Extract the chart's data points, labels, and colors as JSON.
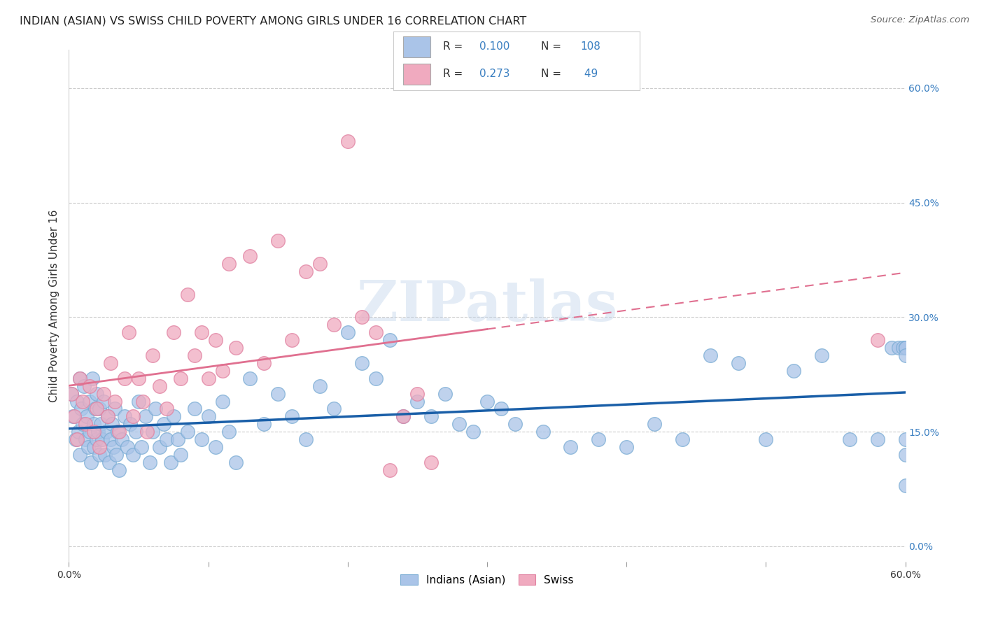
{
  "title": "INDIAN (ASIAN) VS SWISS CHILD POVERTY AMONG GIRLS UNDER 16 CORRELATION CHART",
  "source": "Source: ZipAtlas.com",
  "ylabel": "Child Poverty Among Girls Under 16",
  "xlim": [
    0.0,
    0.6
  ],
  "ylim": [
    -0.02,
    0.65
  ],
  "background_color": "#ffffff",
  "watermark": "ZIPatlas",
  "blue_color": "#aac4e8",
  "blue_edge": "#7aacd4",
  "pink_color": "#f0aabf",
  "pink_edge": "#e080a0",
  "blue_line_color": "#1a5fa8",
  "pink_line_color": "#e07090",
  "right_yticks": [
    0.0,
    0.15,
    0.3,
    0.45,
    0.6
  ],
  "right_ytick_labels": [
    "0.0%",
    "15.0%",
    "30.0%",
    "45.0%",
    "60.0%"
  ],
  "legend_entries": [
    {
      "label": "Indians (Asian)",
      "color": "#aac4e8",
      "R": "0.100",
      "N": "108"
    },
    {
      "label": "Swiss",
      "color": "#f0aabf",
      "R": "0.273",
      "N": "49"
    }
  ],
  "indian_x": [
    0.002,
    0.003,
    0.005,
    0.006,
    0.007,
    0.008,
    0.008,
    0.009,
    0.01,
    0.011,
    0.012,
    0.013,
    0.014,
    0.015,
    0.015,
    0.016,
    0.017,
    0.018,
    0.018,
    0.019,
    0.02,
    0.02,
    0.021,
    0.022,
    0.022,
    0.023,
    0.024,
    0.025,
    0.026,
    0.027,
    0.028,
    0.029,
    0.03,
    0.031,
    0.032,
    0.033,
    0.034,
    0.035,
    0.036,
    0.038,
    0.04,
    0.042,
    0.044,
    0.046,
    0.048,
    0.05,
    0.052,
    0.055,
    0.058,
    0.06,
    0.062,
    0.065,
    0.068,
    0.07,
    0.073,
    0.075,
    0.078,
    0.08,
    0.085,
    0.09,
    0.095,
    0.1,
    0.105,
    0.11,
    0.115,
    0.12,
    0.13,
    0.14,
    0.15,
    0.16,
    0.17,
    0.18,
    0.19,
    0.2,
    0.21,
    0.22,
    0.23,
    0.24,
    0.25,
    0.26,
    0.27,
    0.28,
    0.29,
    0.3,
    0.31,
    0.32,
    0.34,
    0.36,
    0.38,
    0.4,
    0.42,
    0.44,
    0.46,
    0.48,
    0.5,
    0.52,
    0.54,
    0.56,
    0.58,
    0.59,
    0.595,
    0.598,
    0.6,
    0.6,
    0.6,
    0.6,
    0.6,
    0.6
  ],
  "indian_y": [
    0.2,
    0.17,
    0.14,
    0.19,
    0.15,
    0.12,
    0.22,
    0.18,
    0.16,
    0.21,
    0.14,
    0.17,
    0.13,
    0.19,
    0.15,
    0.11,
    0.22,
    0.16,
    0.13,
    0.18,
    0.14,
    0.2,
    0.15,
    0.18,
    0.12,
    0.16,
    0.14,
    0.19,
    0.12,
    0.15,
    0.17,
    0.11,
    0.14,
    0.16,
    0.13,
    0.18,
    0.12,
    0.15,
    0.1,
    0.14,
    0.17,
    0.13,
    0.16,
    0.12,
    0.15,
    0.19,
    0.13,
    0.17,
    0.11,
    0.15,
    0.18,
    0.13,
    0.16,
    0.14,
    0.11,
    0.17,
    0.14,
    0.12,
    0.15,
    0.18,
    0.14,
    0.17,
    0.13,
    0.19,
    0.15,
    0.11,
    0.22,
    0.16,
    0.2,
    0.17,
    0.14,
    0.21,
    0.18,
    0.28,
    0.24,
    0.22,
    0.27,
    0.17,
    0.19,
    0.17,
    0.2,
    0.16,
    0.15,
    0.19,
    0.18,
    0.16,
    0.15,
    0.13,
    0.14,
    0.13,
    0.16,
    0.14,
    0.25,
    0.24,
    0.14,
    0.23,
    0.25,
    0.14,
    0.14,
    0.26,
    0.26,
    0.26,
    0.26,
    0.26,
    0.12,
    0.25,
    0.14,
    0.08
  ],
  "swiss_x": [
    0.002,
    0.004,
    0.006,
    0.008,
    0.01,
    0.012,
    0.015,
    0.018,
    0.02,
    0.022,
    0.025,
    0.028,
    0.03,
    0.033,
    0.036,
    0.04,
    0.043,
    0.046,
    0.05,
    0.053,
    0.056,
    0.06,
    0.065,
    0.07,
    0.075,
    0.08,
    0.085,
    0.09,
    0.095,
    0.1,
    0.105,
    0.11,
    0.115,
    0.12,
    0.13,
    0.14,
    0.15,
    0.16,
    0.17,
    0.18,
    0.19,
    0.2,
    0.21,
    0.22,
    0.23,
    0.24,
    0.25,
    0.26,
    0.58
  ],
  "swiss_y": [
    0.2,
    0.17,
    0.14,
    0.22,
    0.19,
    0.16,
    0.21,
    0.15,
    0.18,
    0.13,
    0.2,
    0.17,
    0.24,
    0.19,
    0.15,
    0.22,
    0.28,
    0.17,
    0.22,
    0.19,
    0.15,
    0.25,
    0.21,
    0.18,
    0.28,
    0.22,
    0.33,
    0.25,
    0.28,
    0.22,
    0.27,
    0.23,
    0.37,
    0.26,
    0.38,
    0.24,
    0.4,
    0.27,
    0.36,
    0.37,
    0.29,
    0.53,
    0.3,
    0.28,
    0.1,
    0.17,
    0.2,
    0.11,
    0.27
  ]
}
